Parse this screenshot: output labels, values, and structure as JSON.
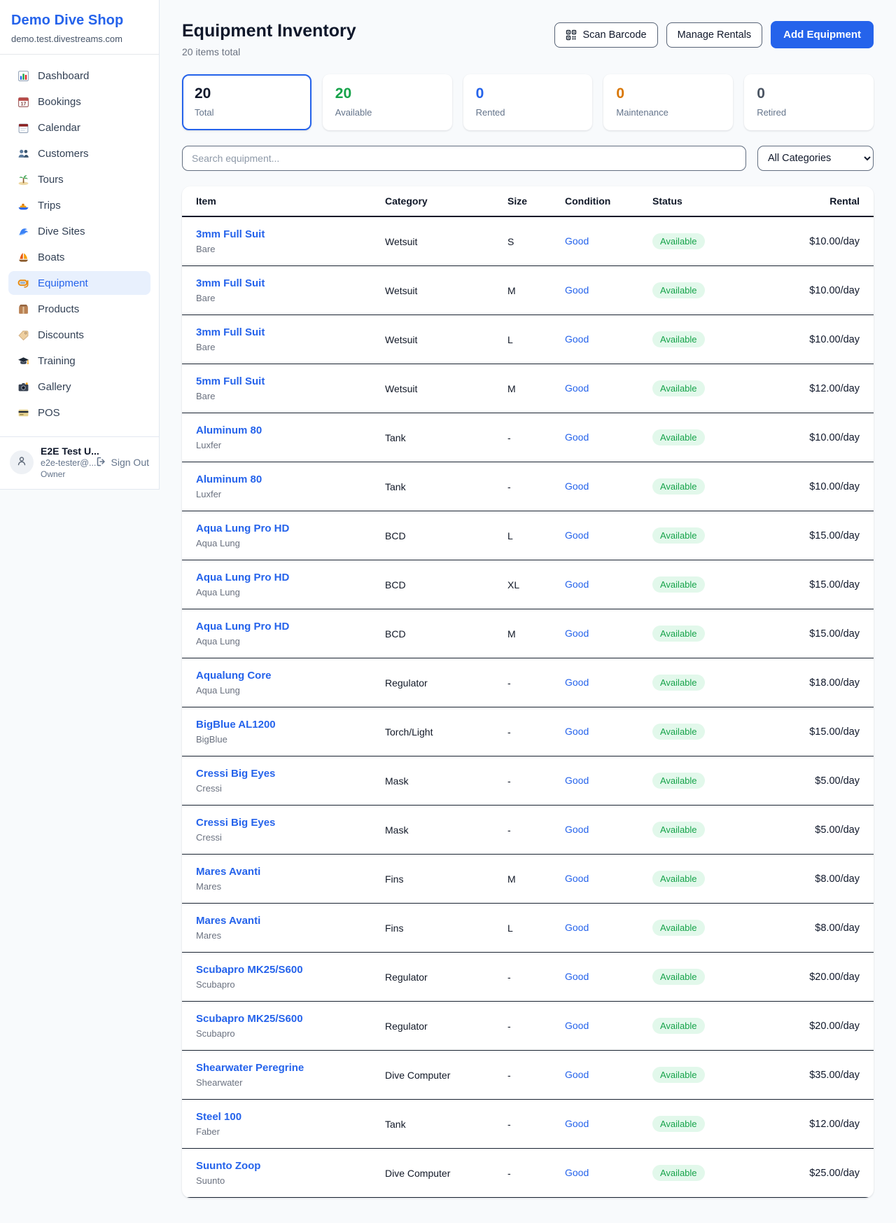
{
  "sidebar": {
    "brand": "Demo Dive Shop",
    "domain": "demo.test.divestreams.com",
    "items": [
      {
        "icon": "dashboard",
        "label": "Dashboard",
        "active": false
      },
      {
        "icon": "bookings",
        "label": "Bookings",
        "active": false
      },
      {
        "icon": "calendar",
        "label": "Calendar",
        "active": false
      },
      {
        "icon": "customers",
        "label": "Customers",
        "active": false
      },
      {
        "icon": "tours",
        "label": "Tours",
        "active": false
      },
      {
        "icon": "trips",
        "label": "Trips",
        "active": false
      },
      {
        "icon": "dive-sites",
        "label": "Dive Sites",
        "active": false
      },
      {
        "icon": "boats",
        "label": "Boats",
        "active": false
      },
      {
        "icon": "equipment",
        "label": "Equipment",
        "active": true
      },
      {
        "icon": "products",
        "label": "Products",
        "active": false
      },
      {
        "icon": "discounts",
        "label": "Discounts",
        "active": false
      },
      {
        "icon": "training",
        "label": "Training",
        "active": false
      },
      {
        "icon": "gallery",
        "label": "Gallery",
        "active": false
      },
      {
        "icon": "pos",
        "label": "POS",
        "active": false
      }
    ],
    "user": {
      "name": "E2E Test U...",
      "email": "e2e-tester@...",
      "role": "Owner",
      "sign_out": "Sign Out"
    }
  },
  "header": {
    "title": "Equipment Inventory",
    "subtitle": "20 items total",
    "scan_barcode": "Scan Barcode",
    "manage_rentals": "Manage Rentals",
    "add_equipment": "Add Equipment"
  },
  "stats": [
    {
      "value": "20",
      "label": "Total",
      "color": "#0f172a",
      "selected": true
    },
    {
      "value": "20",
      "label": "Available",
      "color": "#16a34a",
      "selected": false
    },
    {
      "value": "0",
      "label": "Rented",
      "color": "#2563eb",
      "selected": false
    },
    {
      "value": "0",
      "label": "Maintenance",
      "color": "#d97706",
      "selected": false
    },
    {
      "value": "0",
      "label": "Retired",
      "color": "#4b5563",
      "selected": false
    }
  ],
  "filters": {
    "search_placeholder": "Search equipment...",
    "category_selected": "All Categories"
  },
  "table": {
    "columns": {
      "item": "Item",
      "category": "Category",
      "size": "Size",
      "condition": "Condition",
      "status": "Status",
      "rental": "Rental"
    },
    "rows": [
      {
        "name": "3mm Full Suit",
        "brand": "Bare",
        "category": "Wetsuit",
        "size": "S",
        "condition": "Good",
        "status": "Available",
        "rental": "$10.00/day"
      },
      {
        "name": "3mm Full Suit",
        "brand": "Bare",
        "category": "Wetsuit",
        "size": "M",
        "condition": "Good",
        "status": "Available",
        "rental": "$10.00/day"
      },
      {
        "name": "3mm Full Suit",
        "brand": "Bare",
        "category": "Wetsuit",
        "size": "L",
        "condition": "Good",
        "status": "Available",
        "rental": "$10.00/day"
      },
      {
        "name": "5mm Full Suit",
        "brand": "Bare",
        "category": "Wetsuit",
        "size": "M",
        "condition": "Good",
        "status": "Available",
        "rental": "$12.00/day"
      },
      {
        "name": "Aluminum 80",
        "brand": "Luxfer",
        "category": "Tank",
        "size": "-",
        "condition": "Good",
        "status": "Available",
        "rental": "$10.00/day"
      },
      {
        "name": "Aluminum 80",
        "brand": "Luxfer",
        "category": "Tank",
        "size": "-",
        "condition": "Good",
        "status": "Available",
        "rental": "$10.00/day"
      },
      {
        "name": "Aqua Lung Pro HD",
        "brand": "Aqua Lung",
        "category": "BCD",
        "size": "L",
        "condition": "Good",
        "status": "Available",
        "rental": "$15.00/day"
      },
      {
        "name": "Aqua Lung Pro HD",
        "brand": "Aqua Lung",
        "category": "BCD",
        "size": "XL",
        "condition": "Good",
        "status": "Available",
        "rental": "$15.00/day"
      },
      {
        "name": "Aqua Lung Pro HD",
        "brand": "Aqua Lung",
        "category": "BCD",
        "size": "M",
        "condition": "Good",
        "status": "Available",
        "rental": "$15.00/day"
      },
      {
        "name": "Aqualung Core",
        "brand": "Aqua Lung",
        "category": "Regulator",
        "size": "-",
        "condition": "Good",
        "status": "Available",
        "rental": "$18.00/day"
      },
      {
        "name": "BigBlue AL1200",
        "brand": "BigBlue",
        "category": "Torch/Light",
        "size": "-",
        "condition": "Good",
        "status": "Available",
        "rental": "$15.00/day"
      },
      {
        "name": "Cressi Big Eyes",
        "brand": "Cressi",
        "category": "Mask",
        "size": "-",
        "condition": "Good",
        "status": "Available",
        "rental": "$5.00/day"
      },
      {
        "name": "Cressi Big Eyes",
        "brand": "Cressi",
        "category": "Mask",
        "size": "-",
        "condition": "Good",
        "status": "Available",
        "rental": "$5.00/day"
      },
      {
        "name": "Mares Avanti",
        "brand": "Mares",
        "category": "Fins",
        "size": "M",
        "condition": "Good",
        "status": "Available",
        "rental": "$8.00/day"
      },
      {
        "name": "Mares Avanti",
        "brand": "Mares",
        "category": "Fins",
        "size": "L",
        "condition": "Good",
        "status": "Available",
        "rental": "$8.00/day"
      },
      {
        "name": "Scubapro MK25/S600",
        "brand": "Scubapro",
        "category": "Regulator",
        "size": "-",
        "condition": "Good",
        "status": "Available",
        "rental": "$20.00/day"
      },
      {
        "name": "Scubapro MK25/S600",
        "brand": "Scubapro",
        "category": "Regulator",
        "size": "-",
        "condition": "Good",
        "status": "Available",
        "rental": "$20.00/day"
      },
      {
        "name": "Shearwater Peregrine",
        "brand": "Shearwater",
        "category": "Dive Computer",
        "size": "-",
        "condition": "Good",
        "status": "Available",
        "rental": "$35.00/day"
      },
      {
        "name": "Steel 100",
        "brand": "Faber",
        "category": "Tank",
        "size": "-",
        "condition": "Good",
        "status": "Available",
        "rental": "$12.00/day"
      },
      {
        "name": "Suunto Zoop",
        "brand": "Suunto",
        "category": "Dive Computer",
        "size": "-",
        "condition": "Good",
        "status": "Available",
        "rental": "$25.00/day"
      }
    ]
  },
  "colors": {
    "accent": "#2563eb",
    "available_green": "#16a34a",
    "maintenance_orange": "#d97706",
    "badge_bg": "#e2f8eb",
    "page_bg": "#f8fafc"
  }
}
